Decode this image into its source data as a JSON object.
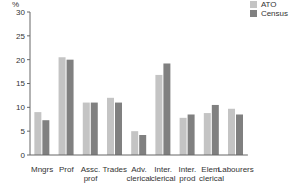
{
  "chart_data": {
    "type": "bar",
    "y_label": "%",
    "categories": [
      "Mngrs",
      "Prof",
      "Assc. prof",
      "Trades",
      "Adv. clerical",
      "Inter. clerical",
      "Inter. prod",
      "Elem. clerical",
      "Labourers"
    ],
    "series": [
      {
        "name": "ATO",
        "color": "#c4c4c4",
        "values": [
          9,
          20.5,
          11,
          12,
          5,
          16.8,
          7.8,
          8.8,
          9.7
        ]
      },
      {
        "name": "Census",
        "color": "#808080",
        "values": [
          7.3,
          20,
          11,
          11,
          4.2,
          19.2,
          8.5,
          10.5,
          8.5
        ]
      }
    ],
    "ylim": [
      0,
      30
    ],
    "yticks": [
      0,
      5,
      10,
      15,
      20,
      25,
      30
    ],
    "grid": false,
    "legend": "top right"
  }
}
